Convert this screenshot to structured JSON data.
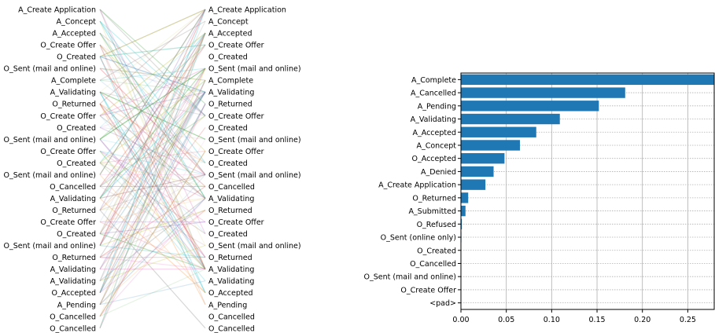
{
  "chart_data": [
    {
      "type": "attention-alignment",
      "left_tokens": [
        "A_Create Application",
        "A_Concept",
        "A_Accepted",
        "O_Create Offer",
        "O_Created",
        "O_Sent (mail and online)",
        "A_Complete",
        "A_Validating",
        "O_Returned",
        "O_Create Offer",
        "O_Created",
        "O_Sent (mail and online)",
        "O_Create Offer",
        "O_Created",
        "O_Sent (mail and online)",
        "O_Cancelled",
        "A_Validating",
        "O_Returned",
        "O_Create Offer",
        "O_Created",
        "O_Sent (mail and online)",
        "O_Returned",
        "A_Validating",
        "A_Validating",
        "O_Accepted",
        "A_Pending",
        "O_Cancelled",
        "O_Cancelled"
      ],
      "right_tokens": [
        "A_Create Application",
        "A_Concept",
        "A_Accepted",
        "O_Create Offer",
        "O_Created",
        "O_Sent (mail and online)",
        "A_Complete",
        "A_Validating",
        "O_Returned",
        "O_Create Offer",
        "O_Created",
        "O_Sent (mail and online)",
        "O_Create Offer",
        "O_Created",
        "O_Sent (mail and online)",
        "O_Cancelled",
        "A_Validating",
        "O_Returned",
        "O_Create Offer",
        "O_Created",
        "O_Sent (mail and online)",
        "O_Returned",
        "A_Validating",
        "A_Validating",
        "O_Accepted",
        "A_Pending",
        "O_Cancelled",
        "O_Cancelled"
      ],
      "colors": [
        "#1f77b4",
        "#ff7f0e",
        "#2ca02c",
        "#d62728",
        "#9467bd",
        "#8c564b",
        "#e377c2",
        "#7f7f7f",
        "#bcbd22",
        "#17becf"
      ]
    },
    {
      "type": "bar",
      "orientation": "horizontal",
      "categories": [
        "A_Complete",
        "A_Cancelled",
        "A_Pending",
        "A_Validating",
        "A_Accepted",
        "A_Concept",
        "O_Accepted",
        "A_Denied",
        "A_Create Application",
        "O_Returned",
        "A_Submitted",
        "O_Refused",
        "O_Sent (online only)",
        "O_Created",
        "O_Cancelled",
        "O_Sent (mail and online)",
        "O_Create Offer",
        "<pad>"
      ],
      "values": [
        0.279,
        0.181,
        0.152,
        0.109,
        0.083,
        0.065,
        0.048,
        0.036,
        0.027,
        0.008,
        0.005,
        0.001,
        0.0005,
        0.0004,
        0.0003,
        0.0002,
        0.0001,
        0.0
      ],
      "xticks": [
        "0.00",
        "0.05",
        "0.10",
        "0.15",
        "0.20",
        "0.25"
      ],
      "xlim": [
        0,
        0.28
      ],
      "grid": true,
      "color": "#1f77b4"
    }
  ]
}
